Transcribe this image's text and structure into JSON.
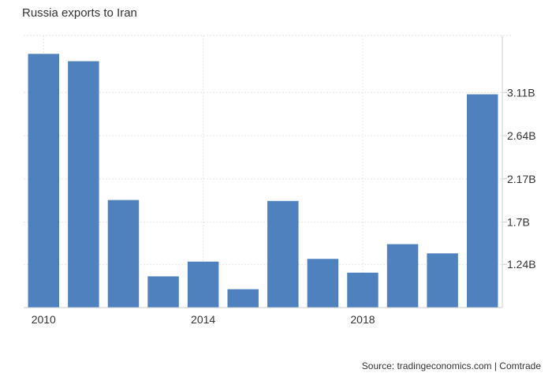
{
  "title": "Russia exports to Iran",
  "source": "Source: tradingeconomics.com | Comtrade",
  "chart_data": {
    "type": "bar",
    "title": "Russia exports to Iran",
    "categories": [
      "2010",
      "2011",
      "2012",
      "2013",
      "2014",
      "2015",
      "2016",
      "2017",
      "2018",
      "2019",
      "2020",
      "2021"
    ],
    "values": [
      3.53,
      3.45,
      1.94,
      1.11,
      1.27,
      0.97,
      1.93,
      1.3,
      1.15,
      1.46,
      1.36,
      3.09
    ],
    "unit": "B",
    "ylim": [
      0.77,
      3.73
    ],
    "y_ticks": [
      1.24,
      1.7,
      2.17,
      2.64,
      3.11
    ],
    "y_tick_labels": [
      "1.24B",
      "1.7B",
      "2.17B",
      "2.64B",
      "3.11B"
    ],
    "x_tick_labels": [
      "2010",
      "2014",
      "2018"
    ],
    "y_axis_position": "right",
    "grid": true,
    "bar_color": "#4e81bd"
  }
}
